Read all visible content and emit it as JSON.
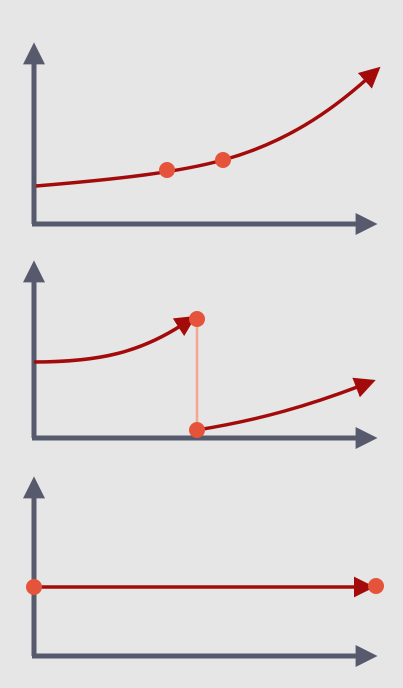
{
  "colors": {
    "background": "#e6e6e6",
    "axis": "#565a6c",
    "curve": "#a30b0b",
    "point": "#e5533a",
    "connector": "#f4a78d"
  },
  "panels": [
    {
      "name": "panel-exponential-growth",
      "description_shapes": [
        "axes",
        "growth-curve-with-arrow",
        "two-points-on-curve"
      ]
    },
    {
      "name": "panel-reset-discontinuity",
      "description_shapes": [
        "axes",
        "rising-curve-to-point",
        "vertical-drop-connector",
        "second-rising-curve"
      ]
    },
    {
      "name": "panel-constant",
      "description_shapes": [
        "axes",
        "horizontal-line-with-endpoints"
      ]
    }
  ]
}
